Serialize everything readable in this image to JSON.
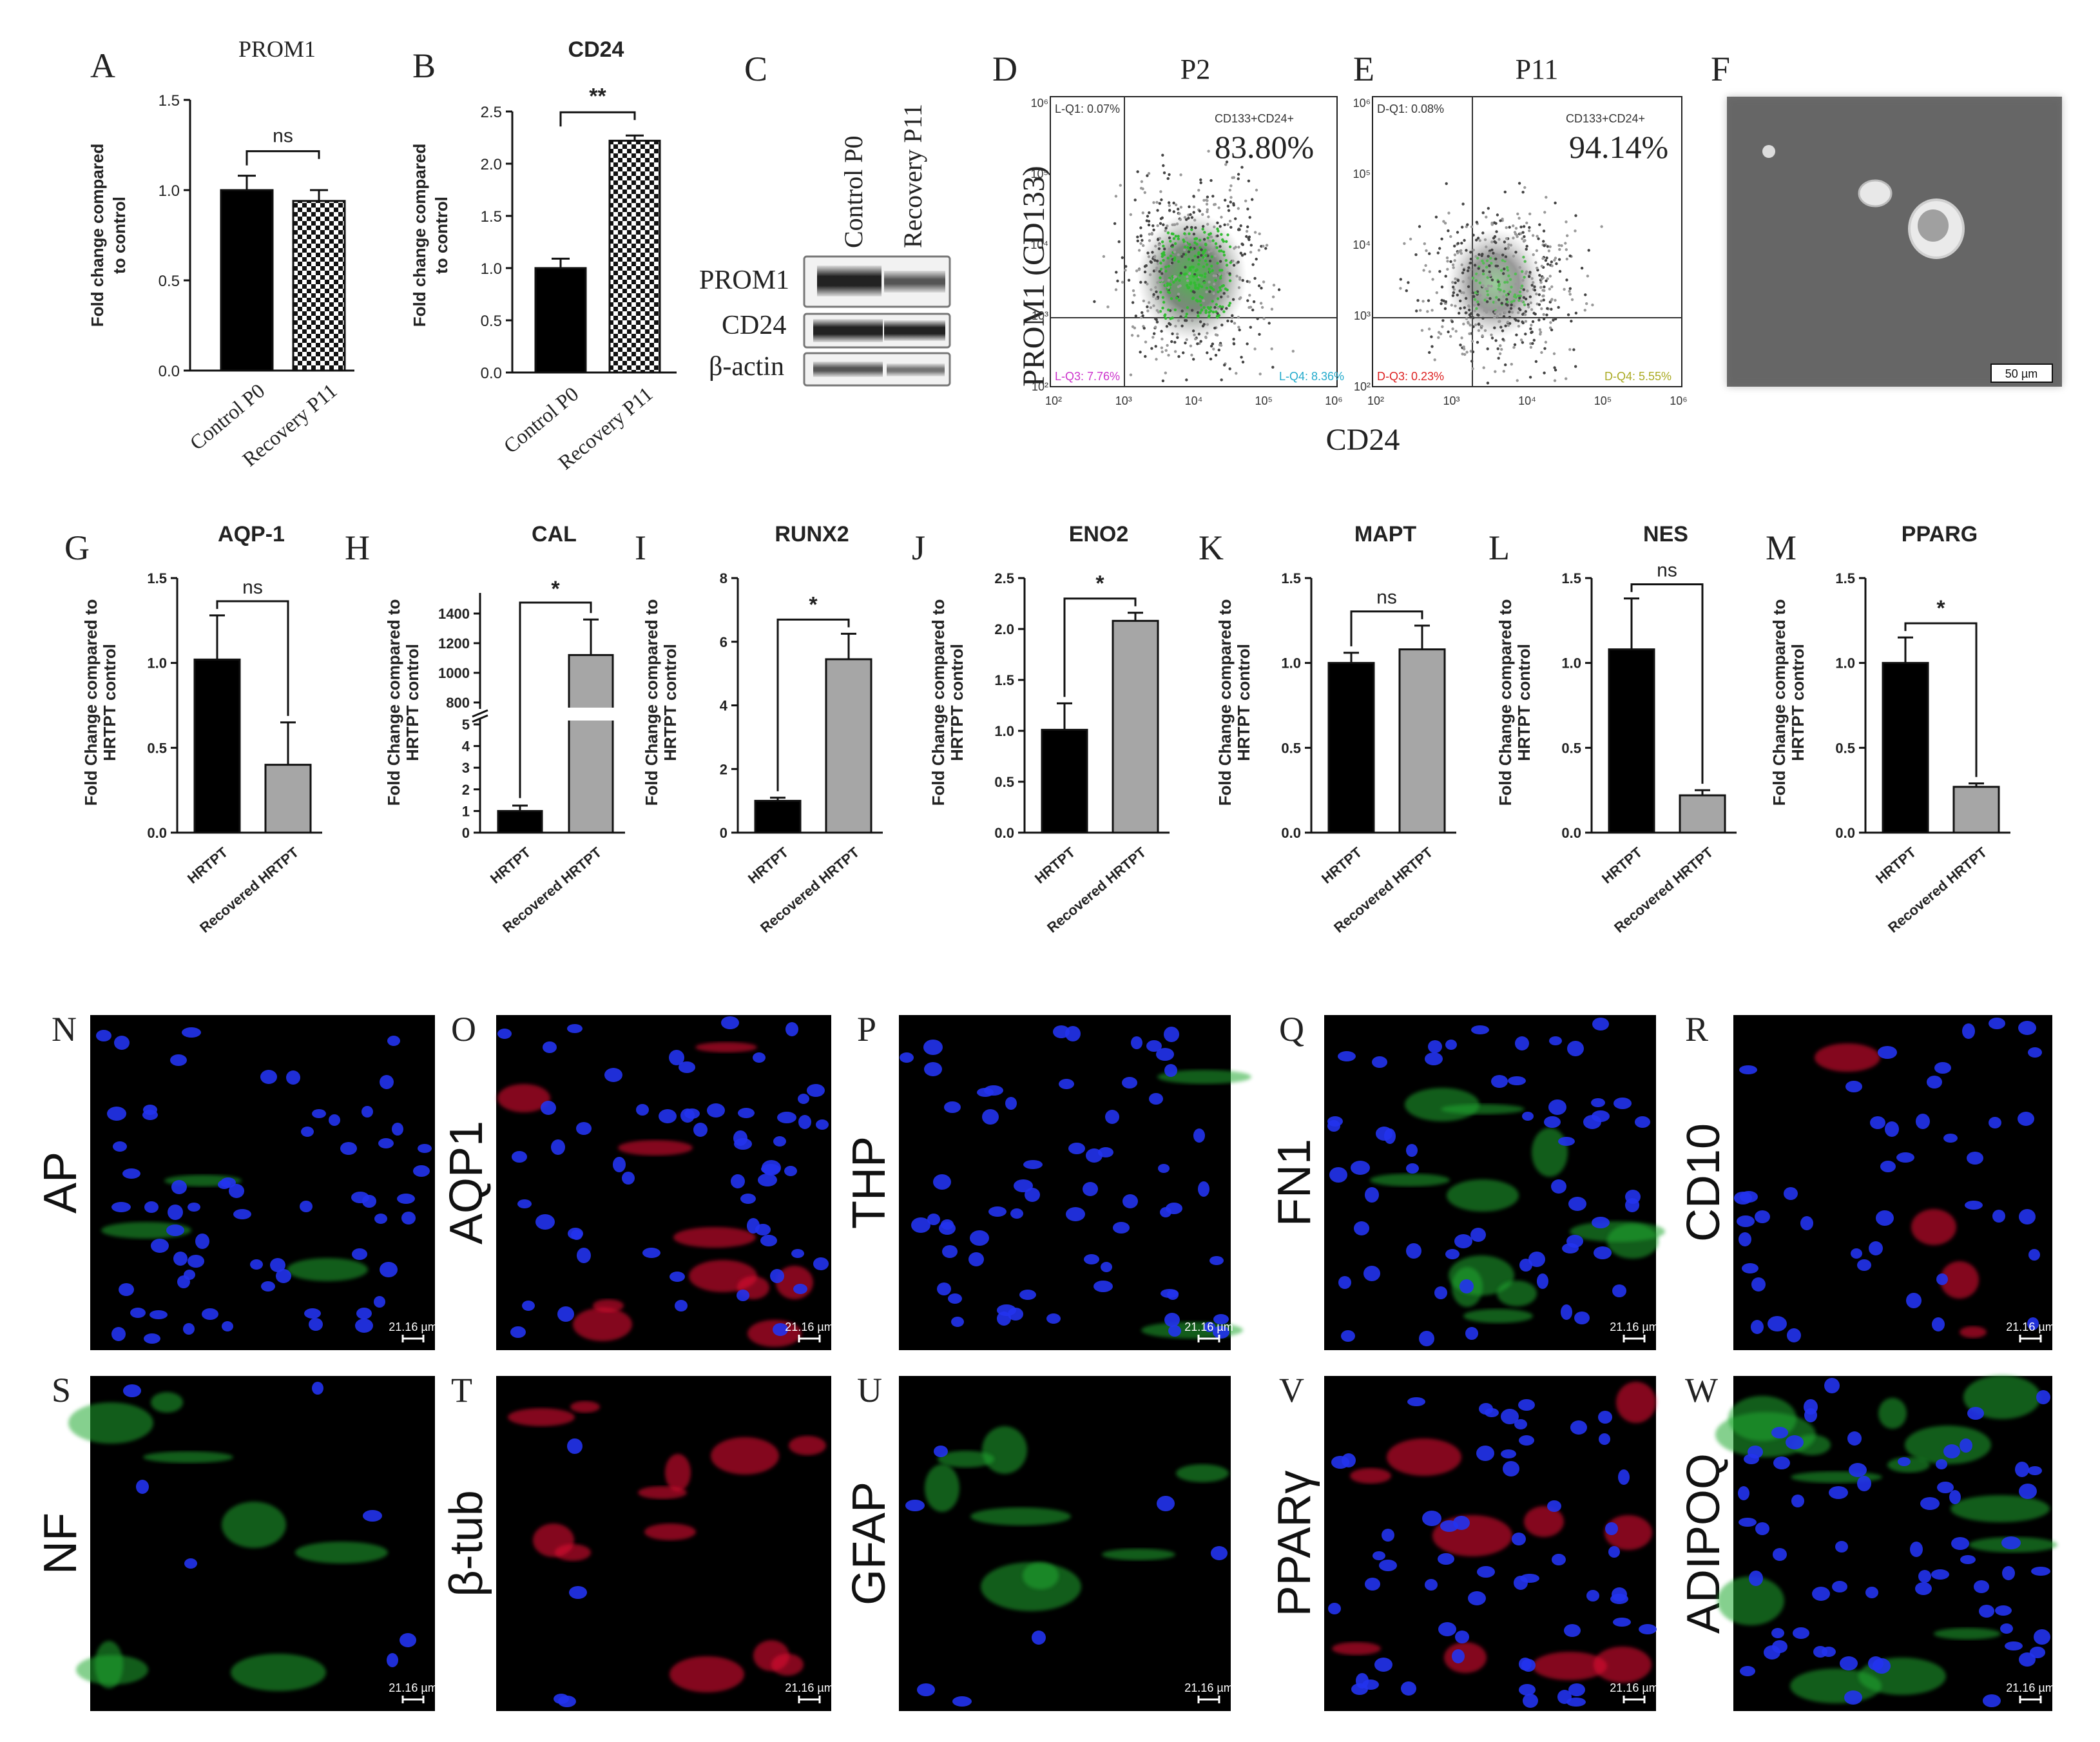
{
  "panels": {
    "A": {
      "label": "A",
      "title": "PROM1",
      "ylabel": [
        "Fold change compared",
        "to control"
      ],
      "yticks": [
        "0.0",
        "0.5",
        "1.0",
        "1.5"
      ],
      "ymax": 1.5,
      "categories": [
        "Control P0",
        "Recovery P11"
      ],
      "values": [
        1.0,
        0.94
      ],
      "errors": [
        0.08,
        0.06
      ],
      "sig": "ns"
    },
    "B": {
      "label": "B",
      "title": "CD24",
      "ylabel": [
        "Fold change compared",
        "to control"
      ],
      "yticks": [
        "0.0",
        "0.5",
        "1.0",
        "1.5",
        "2.0",
        "2.5"
      ],
      "ymax": 2.5,
      "categories": [
        "Control P0",
        "Recovery P11"
      ],
      "values": [
        1.0,
        2.22
      ],
      "errors": [
        0.09,
        0.05
      ],
      "sig": "**"
    },
    "C": {
      "label": "C",
      "columns": [
        "Control P0",
        "Recovery P11"
      ],
      "rows": [
        "PROM1",
        "CD24",
        "β-actin"
      ]
    },
    "D": {
      "label": "D",
      "title": "P2",
      "ylabel": "PROM1 (CD133)",
      "xlabel": "CD24",
      "q1": "L-Q1: 0.07%",
      "q2": "CD133+CD24+",
      "big": "83.80%",
      "q3": "L-Q3: 7.76%",
      "q4": "L-Q4: 8.36%",
      "ticks": [
        "10²",
        "10³",
        "10⁴",
        "10⁵",
        "10⁶"
      ]
    },
    "E": {
      "label": "E",
      "title": "P11",
      "q1": "D-Q1: 0.08%",
      "q2": "CD133+CD24+",
      "big": "94.14%",
      "q3": "D-Q3: 0.23%",
      "q4": "D-Q4: 5.55%",
      "ticks": [
        "10²",
        "10³",
        "10⁴",
        "10⁵",
        "10⁶"
      ]
    },
    "F": {
      "label": "F",
      "scalebar": "50 µm"
    },
    "G": {
      "label": "G",
      "title": "AQP-1",
      "yticks": [
        "0.0",
        "0.5",
        "1.0",
        "1.5"
      ],
      "ymax": 1.5,
      "values": [
        1.02,
        0.4
      ],
      "errors": [
        0.26,
        0.25
      ],
      "sig": "ns"
    },
    "H": {
      "label": "H",
      "title": "CAL",
      "yticks_low": [
        "0",
        "1",
        "2",
        "3",
        "4",
        "5"
      ],
      "yticks_high": [
        "800",
        "1000",
        "1200",
        "1400"
      ],
      "values": [
        1.0,
        1120
      ],
      "errors": [
        0.25,
        240
      ],
      "sig": "*"
    },
    "I": {
      "label": "I",
      "title": "RUNX2",
      "yticks": [
        "0",
        "2",
        "4",
        "6",
        "8"
      ],
      "ymax": 8,
      "values": [
        1.0,
        5.45
      ],
      "errors": [
        0.1,
        0.8
      ],
      "sig": "*"
    },
    "J": {
      "label": "J",
      "title": "ENO2",
      "yticks": [
        "0.0",
        "0.5",
        "1.0",
        "1.5",
        "2.0",
        "2.5"
      ],
      "ymax": 2.5,
      "values": [
        1.01,
        2.08
      ],
      "errors": [
        0.26,
        0.08
      ],
      "sig": "*"
    },
    "K": {
      "label": "K",
      "title": "MAPT",
      "yticks": [
        "0.0",
        "0.5",
        "1.0",
        "1.5"
      ],
      "ymax": 1.5,
      "values": [
        1.0,
        1.08
      ],
      "errors": [
        0.06,
        0.14
      ],
      "sig": "ns"
    },
    "L": {
      "label": "L",
      "title": "NES",
      "yticks": [
        "0.0",
        "0.5",
        "1.0",
        "1.5"
      ],
      "ymax": 1.5,
      "values": [
        1.08,
        0.22
      ],
      "errors": [
        0.3,
        0.03
      ],
      "sig": "ns"
    },
    "M": {
      "label": "M",
      "title": "PPARG",
      "yticks": [
        "0.0",
        "0.5",
        "1.0",
        "1.5"
      ],
      "ymax": 1.5,
      "values": [
        1.0,
        0.27
      ],
      "errors": [
        0.15,
        0.02
      ],
      "sig": "*"
    }
  },
  "row2_ylabel": [
    "Fold  Change compared to",
    "HRTPT control"
  ],
  "row2_categories": [
    "HRTPT",
    "Recovered HRTPT"
  ],
  "micro": [
    {
      "label": "N",
      "marker": "AP"
    },
    {
      "label": "O",
      "marker": "AQP1"
    },
    {
      "label": "P",
      "marker": "THP"
    },
    {
      "label": "Q",
      "marker": "FN1"
    },
    {
      "label": "R",
      "marker": "CD10"
    },
    {
      "label": "S",
      "marker": "NF"
    },
    {
      "label": "T",
      "marker": "β-tub"
    },
    {
      "label": "U",
      "marker": "GFAP"
    },
    {
      "label": "V",
      "marker": "PPARγ"
    },
    {
      "label": "W",
      "marker": "ADIPOQ"
    }
  ],
  "micro_scalebar": "21.16 µm",
  "colors": {
    "black_bar": "#000000",
    "gray_bar": "#a6a6a6",
    "nuclei": "#2233ee",
    "green": "#22bb33",
    "red": "#dd1133",
    "magenta": "#cc2299"
  }
}
